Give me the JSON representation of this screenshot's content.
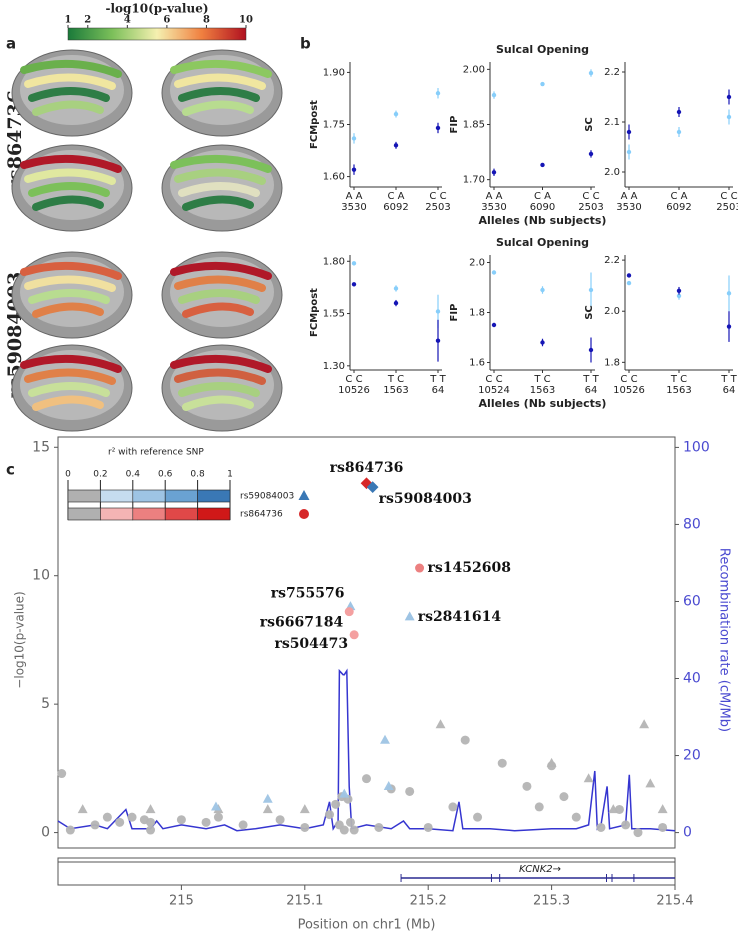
{
  "figure": {
    "panels": [
      "a",
      "b",
      "c"
    ],
    "row_labels": [
      "rs864736",
      "rs59084003"
    ]
  },
  "chart_data": [
    {
      "type": "colorbar",
      "title": "-log10(p-value)",
      "lim": [
        1,
        10
      ],
      "ticks": [
        1,
        2,
        4,
        6,
        8,
        10
      ],
      "colors": [
        "#1a7a3a",
        "#7cc05a",
        "#f5f0b0",
        "#f08040",
        "#b01020"
      ]
    },
    {
      "type": "errorbar",
      "ylabel": "FCMpost",
      "categories": [
        "A A",
        "C A",
        "C C"
      ],
      "counts": [
        3530,
        6092,
        2503
      ],
      "ylim": [
        1.57,
        1.93
      ],
      "yticks": [
        {
          "value": 1.6,
          "label": "1.60"
        },
        {
          "value": 1.75,
          "label": "1.75"
        },
        {
          "value": 1.9,
          "label": "1.90"
        }
      ],
      "series": [
        {
          "color": "#87cefa",
          "values": [
            1.71,
            1.78,
            1.84
          ],
          "errors": [
            0.015,
            0.01,
            0.015
          ]
        },
        {
          "color": "#1515b5",
          "values": [
            1.62,
            1.69,
            1.74
          ],
          "errors": [
            0.015,
            0.01,
            0.015
          ]
        }
      ]
    },
    {
      "type": "errorbar",
      "title": "Sulcal Opening",
      "ylabel": "FIP",
      "xlabel": "Alleles (Nb subjects)",
      "categories": [
        "A A",
        "C A",
        "C C"
      ],
      "counts": [
        3530,
        6090,
        2503
      ],
      "ylim": [
        1.68,
        2.02
      ],
      "yticks": [
        {
          "value": 1.7,
          "label": "1.70"
        },
        1.85,
        {
          "value": 2.0,
          "label": "2.00"
        }
      ],
      "series": [
        {
          "color": "#87cefa",
          "values": [
            1.93,
            1.96,
            1.99
          ],
          "errors": [
            0.01,
            0.005,
            0.01
          ]
        },
        {
          "color": "#1515b5",
          "values": [
            1.72,
            1.74,
            1.77
          ],
          "errors": [
            0.01,
            0.005,
            0.01
          ]
        }
      ]
    },
    {
      "type": "errorbar",
      "ylabel": "SC",
      "categories": [
        "A A",
        "C A",
        "C C"
      ],
      "counts": [
        3530,
        6092,
        2503
      ],
      "ylim": [
        1.97,
        2.22
      ],
      "yticks": [
        {
          "value": 2.0,
          "label": "2.0"
        },
        2.1,
        2.2
      ],
      "series": [
        {
          "color": "#87cefa",
          "values": [
            2.04,
            2.08,
            2.11
          ],
          "errors": [
            0.015,
            0.01,
            0.015
          ]
        },
        {
          "color": "#1515b5",
          "values": [
            2.08,
            2.12,
            2.15
          ],
          "errors": [
            0.015,
            0.01,
            0.015
          ]
        }
      ]
    },
    {
      "type": "errorbar",
      "ylabel": "FCMpost",
      "categories": [
        "C C",
        "T C",
        "T T"
      ],
      "counts": [
        10526,
        1563,
        64
      ],
      "ylim": [
        1.28,
        1.83
      ],
      "yticks": [
        {
          "value": 1.3,
          "label": "1.30"
        },
        1.55,
        {
          "value": 1.8,
          "label": "1.80"
        }
      ],
      "series": [
        {
          "color": "#87cefa",
          "values": [
            1.79,
            1.67,
            1.56
          ],
          "errors": [
            0.005,
            0.015,
            0.08
          ]
        },
        {
          "color": "#1515b5",
          "values": [
            1.69,
            1.6,
            1.42
          ],
          "errors": [
            0.005,
            0.015,
            0.1
          ]
        }
      ]
    },
    {
      "type": "errorbar",
      "title": "Sulcal Opening",
      "ylabel": "FIP",
      "xlabel": "Alleles (Nb subjects)",
      "categories": [
        "C C",
        "T C",
        "T T"
      ],
      "counts": [
        10524,
        1563,
        64
      ],
      "ylim": [
        1.57,
        2.03
      ],
      "yticks": [
        1.6,
        1.8,
        {
          "value": 2.0,
          "label": "2.0"
        }
      ],
      "series": [
        {
          "color": "#87cefa",
          "values": [
            1.96,
            1.89,
            1.89
          ],
          "errors": [
            0.005,
            0.015,
            0.07
          ]
        },
        {
          "color": "#1515b5",
          "values": [
            1.75,
            1.68,
            1.65
          ],
          "errors": [
            0.005,
            0.015,
            0.05
          ]
        }
      ]
    },
    {
      "type": "errorbar",
      "ylabel": "SC",
      "categories": [
        "C C",
        "T C",
        "T T"
      ],
      "counts": [
        10526,
        1563,
        64
      ],
      "ylim": [
        1.77,
        2.22
      ],
      "yticks": [
        1.8,
        {
          "value": 2.0,
          "label": "2.0"
        },
        2.2
      ],
      "series": [
        {
          "color": "#87cefa",
          "values": [
            2.11,
            2.06,
            2.07
          ],
          "errors": [
            0.005,
            0.015,
            0.07
          ]
        },
        {
          "color": "#1515b5",
          "values": [
            2.14,
            2.08,
            1.94
          ],
          "errors": [
            0.005,
            0.015,
            0.06
          ]
        }
      ]
    },
    {
      "type": "locuszoom",
      "xlabel": "Position on chr1 (Mb)",
      "ylabel": "−log10(p-value)",
      "y2label": "Recombination rate (cM/Mb)",
      "xlim": [
        214.9,
        215.4
      ],
      "xticks": [
        215,
        215.1,
        215.2,
        215.3,
        215.4
      ],
      "ylim": [
        -0.6,
        15.4
      ],
      "yticks": [
        0,
        5,
        10,
        15
      ],
      "y2lim": [
        -4,
        102.7
      ],
      "y2ticks": [
        0,
        20,
        40,
        60,
        80,
        100
      ],
      "legend": {
        "title": "r² with reference SNP",
        "ticks": [
          0,
          0.2,
          0.4,
          0.6,
          0.8,
          1
        ],
        "rows": [
          {
            "name": "rs59084003",
            "marker": "triangle",
            "color": "#3a78b5",
            "colors": [
              "#b0b0b0",
              "#c6dcef",
              "#9ec4e4",
              "#6aa2d2",
              "#3a78b5"
            ]
          },
          {
            "name": "rs864736",
            "marker": "circle",
            "color": "#d62728",
            "colors": [
              "#b0b0b0",
              "#f4b4b4",
              "#ec8080",
              "#e04848",
              "#d01818"
            ]
          }
        ]
      },
      "points": [
        {
          "marker": "circle",
          "color": "#b4b4b4",
          "x": [
            214.903,
            214.91,
            214.93,
            214.94,
            214.95,
            214.96,
            214.97,
            214.975,
            214.975,
            215.0,
            215.02,
            215.03,
            215.05,
            215.08,
            215.1,
            215.12,
            215.125,
            215.128,
            215.13,
            215.132,
            215.135,
            215.137,
            215.14,
            215.15,
            215.16,
            215.17,
            215.185,
            215.2,
            215.22,
            215.23,
            215.24,
            215.26,
            215.28,
            215.29,
            215.3,
            215.31,
            215.32,
            215.34,
            215.355,
            215.36,
            215.37,
            215.39
          ],
          "values": [
            2.3,
            0.1,
            0.3,
            0.6,
            0.4,
            0.6,
            0.5,
            0.4,
            0.1,
            0.5,
            0.4,
            0.6,
            0.3,
            0.5,
            0.2,
            0.7,
            1.1,
            0.3,
            1.4,
            0.1,
            1.3,
            0.4,
            0.1,
            2.1,
            0.2,
            1.7,
            1.6,
            0.2,
            1.0,
            3.6,
            0.6,
            2.7,
            1.8,
            1.0,
            2.6,
            1.4,
            0.6,
            0.2,
            0.9,
            0.3,
            0.0,
            0.2
          ]
        },
        {
          "marker": "triangle",
          "color": "#b4b4b4",
          "x": [
            214.92,
            214.975,
            215.03,
            215.07,
            215.1,
            215.21,
            215.3,
            215.33,
            215.35,
            215.375,
            215.38,
            215.39
          ],
          "values": [
            0.9,
            0.9,
            0.9,
            0.9,
            0.9,
            4.2,
            2.7,
            2.1,
            0.9,
            4.2,
            1.9,
            0.9
          ]
        },
        {
          "marker": "triangle",
          "color": "#9ec4e4",
          "x": [
            215.028,
            215.07,
            215.132,
            215.165,
            215.168
          ],
          "values": [
            1.0,
            1.3,
            1.5,
            3.6,
            1.8
          ]
        }
      ],
      "annotated": {
        "labels": [
          "rs864736",
          "rs59084003",
          "rs1452608",
          "rs755576",
          "rs6667184",
          "rs2841614",
          "rs504473"
        ],
        "x": [
          215.15,
          215.155,
          215.193,
          215.137,
          215.136,
          215.185,
          215.14
        ],
        "values": [
          13.6,
          13.45,
          10.3,
          8.8,
          8.6,
          8.4,
          7.7
        ],
        "colors": [
          "#d62728",
          "#3a78b5",
          "#ec8080",
          "#9ec4e4",
          "#f4a0a0",
          "#9ec4e4",
          "#f4a0a0"
        ],
        "markers": [
          "diamond",
          "diamond",
          "circle",
          "triangle",
          "circle",
          "triangle",
          "circle"
        ]
      },
      "recombination": {
        "axis": "y2",
        "color": "#3535d0",
        "x": [
          214.9,
          214.91,
          214.93,
          214.94,
          214.955,
          214.96,
          214.975,
          214.98,
          214.985,
          215.0,
          215.02,
          215.035,
          215.045,
          215.06,
          215.08,
          215.1,
          215.115,
          215.12,
          215.123,
          215.127,
          215.128,
          215.131,
          215.132,
          215.134,
          215.136,
          215.138,
          215.15,
          215.17,
          215.18,
          215.185,
          215.2,
          215.22,
          215.225,
          215.228,
          215.25,
          215.27,
          215.3,
          215.32,
          215.33,
          215.335,
          215.337,
          215.34,
          215.345,
          215.347,
          215.36,
          215.363,
          215.365,
          215.38,
          215.4
        ],
        "values": [
          3,
          1,
          2,
          1,
          6,
          1,
          1,
          3,
          1,
          2,
          1,
          2,
          0.5,
          1,
          2,
          1,
          2,
          8,
          1,
          3,
          42,
          41,
          41,
          42,
          12,
          1,
          2,
          1,
          3,
          1,
          1,
          0.5,
          8,
          1,
          1,
          0.5,
          1,
          1,
          2,
          16,
          1,
          2,
          12,
          1,
          2,
          15,
          1,
          1,
          0.5
        ]
      },
      "gene": {
        "label": "KCNK2→",
        "start": 215.178,
        "end": 215.4
      }
    }
  ]
}
